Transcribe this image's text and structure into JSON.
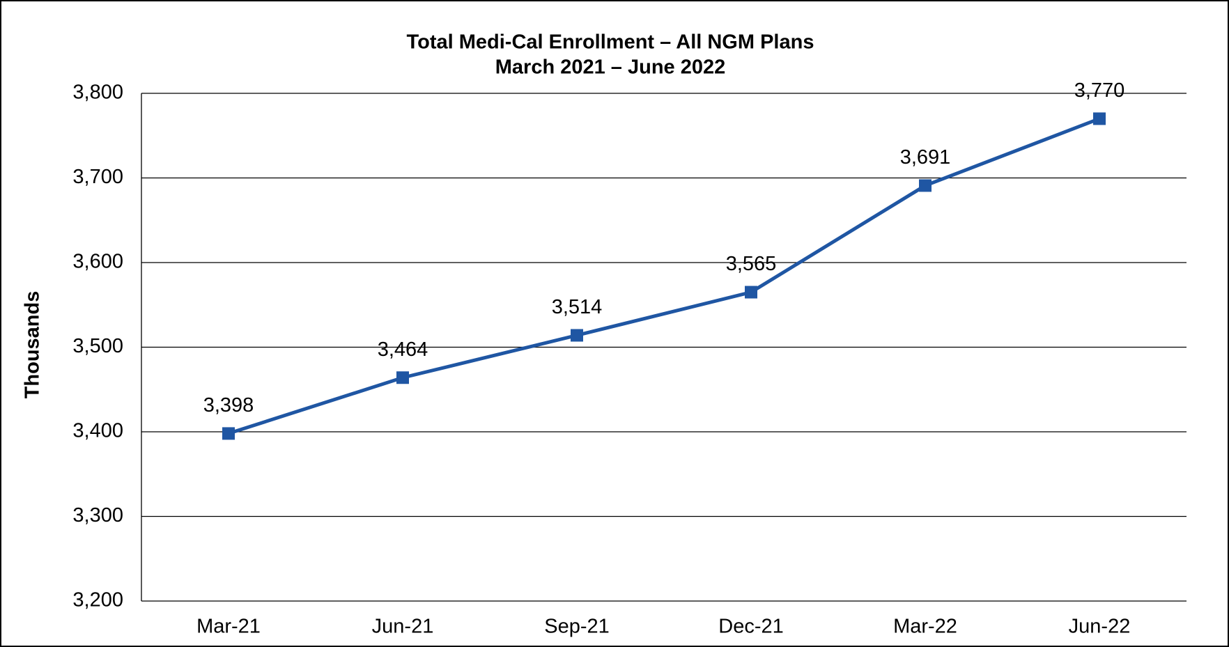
{
  "chart_data": {
    "type": "line",
    "title": "Total Medi-Cal Enrollment – All NGM Plans",
    "subtitle": "March 2021 – June 2022",
    "y_label": "Thousands",
    "categories": [
      "Mar-21",
      "Jun-21",
      "Sep-21",
      "Dec-21",
      "Mar-22",
      "Jun-22"
    ],
    "series": [
      {
        "name": "Total Medi-Cal Enrollment",
        "color": "#1f56a3",
        "values": [
          3398,
          3464,
          3514,
          3565,
          3691,
          3770
        ],
        "value_labels": [
          "3,398",
          "3,464",
          "3,514",
          "3,565",
          "3,691",
          "3,770"
        ]
      }
    ],
    "ylim": [
      3200,
      3800
    ],
    "yticks": [
      {
        "value": 3200,
        "label": "3,200"
      },
      {
        "value": 3300,
        "label": "3,300"
      },
      {
        "value": 3400,
        "label": "3,400"
      },
      {
        "value": 3500,
        "label": "3,500"
      },
      {
        "value": 3600,
        "label": "3,600"
      },
      {
        "value": 3700,
        "label": "3,700"
      },
      {
        "value": 3800,
        "label": "3,800"
      }
    ],
    "grid": true
  }
}
